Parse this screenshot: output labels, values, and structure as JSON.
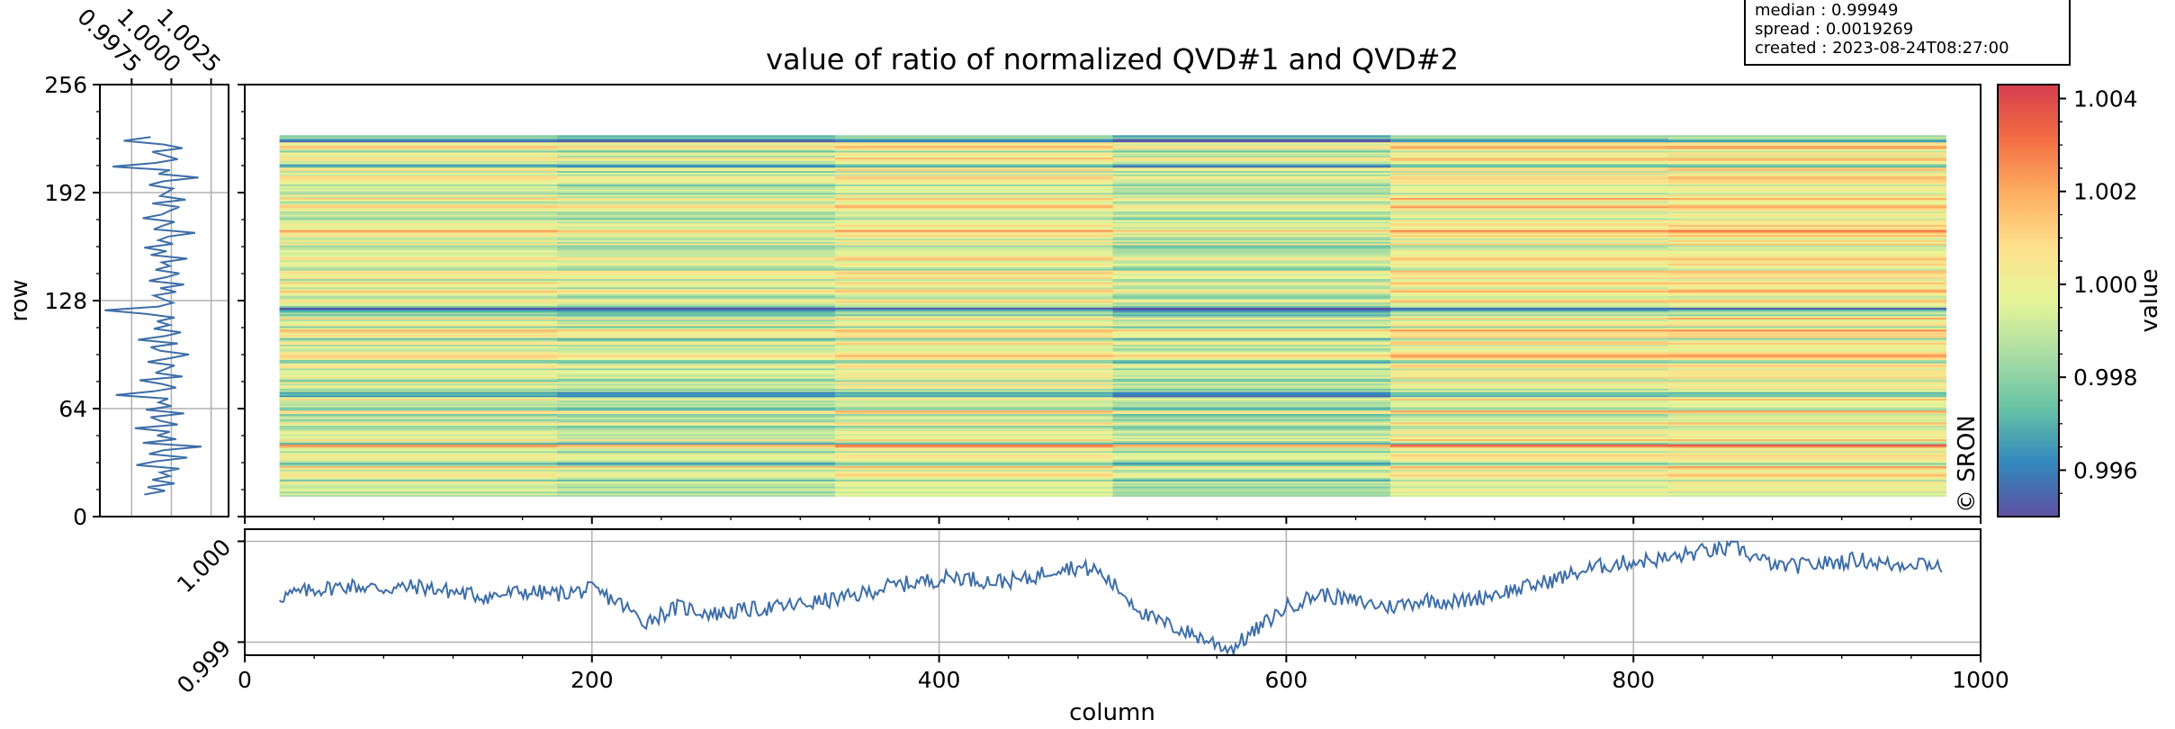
{
  "chart_data": {
    "type": "heatmap",
    "title": "value of ratio of normalized QVD#1 and QVD#2",
    "xlabel": "column",
    "ylabel": "row",
    "colorbar_label": "value",
    "xlim": [
      0,
      1000
    ],
    "ylim": [
      0,
      256
    ],
    "x_ticks": [
      "0",
      "200",
      "400",
      "600",
      "800",
      "1000"
    ],
    "y_ticks": [
      "0",
      "64",
      "128",
      "192",
      "256"
    ],
    "image_extent": {
      "columns": [
        20,
        980
      ],
      "rows": [
        12,
        226
      ]
    },
    "colorbar": {
      "min": 0.995,
      "max": 1.0043,
      "ticks": [
        "0.996",
        "0.998",
        "1.000",
        "1.002",
        "1.004"
      ],
      "colormap": "Spectral_r"
    },
    "colormap_stops": [
      "#5e4fa2",
      "#3288bd",
      "#66c2a5",
      "#abdda4",
      "#e6f598",
      "#fee08b",
      "#fdae61",
      "#f46d43",
      "#d53e4f"
    ],
    "info_box": [
      "median : 0.99949",
      "spread : 0.0019269",
      "created : 2023-08-24T08:27:00"
    ],
    "watermark": "© SRON",
    "side_panel": {
      "xlim": [
        0.9955,
        1.0036
      ],
      "x_ticks": [
        "0.9975",
        "1.0000",
        "1.0025"
      ],
      "description": "row-wise median of ratio",
      "values": [
        0.9983,
        0.9996,
        0.9985,
        1.0002,
        0.9988,
        0.9999,
        0.9993,
        1.0005,
        0.9978,
        0.999,
        1.001,
        0.9986,
        0.9995,
        1.0019,
        0.9982,
        1.0003,
        0.9991,
        0.9999,
        0.9977,
        1.0004,
        0.9993,
        0.9987,
        1.0008,
        0.9984,
        1.0,
        0.9992,
        0.9998,
        0.9965,
        0.9989,
        1.0003,
        0.9994,
        0.998,
        1.0007,
        0.999,
        0.9996,
        1.0002,
        0.9985,
        0.9999,
        1.0011,
        0.9993,
        0.9987,
        1.0004,
        0.9979,
        0.9996,
        1.0006,
        0.9989,
        0.9999,
        0.9991,
        1.0002,
        0.9984,
        0.9958,
        0.9992,
        1.0001,
        0.9995,
        0.9989,
        1.0003,
        0.9993,
        1.0008,
        0.9986,
        0.9997,
        1.0005,
        0.999,
        0.9999,
        0.9994,
        1.001,
        0.9987,
        0.9997,
        0.9983,
        1.0001,
        0.9992,
        0.9998,
        1.0015,
        0.9989,
        0.9995,
        1.0002,
        0.9982,
        0.9994,
        0.9999,
        1.0005,
        0.9988,
        1.0009,
        0.9993,
        0.9997,
        1.0001,
        0.9986,
        0.9995,
        1.0017,
        0.9992,
        0.9999,
        0.9963,
        0.999,
        1.0004,
        0.9996,
        0.9988,
        1.0007,
        0.9995,
        0.997,
        0.9987
      ]
    },
    "bottom_panel": {
      "ylim": [
        0.99887,
        1.00012
      ],
      "y_ticks": [
        "0.999",
        "1.000"
      ],
      "description": "column-wise median of ratio",
      "points": [
        [
          20,
          0.99945
        ],
        [
          40,
          0.99952
        ],
        [
          60,
          0.99956
        ],
        [
          80,
          0.99953
        ],
        [
          100,
          0.99955
        ],
        [
          120,
          0.9995
        ],
        [
          140,
          0.99945
        ],
        [
          160,
          0.9995
        ],
        [
          180,
          0.99948
        ],
        [
          200,
          0.99952
        ],
        [
          215,
          0.9994
        ],
        [
          230,
          0.9992
        ],
        [
          250,
          0.99935
        ],
        [
          270,
          0.99928
        ],
        [
          290,
          0.99932
        ],
        [
          310,
          0.99935
        ],
        [
          330,
          0.9994
        ],
        [
          350,
          0.99945
        ],
        [
          370,
          0.99955
        ],
        [
          390,
          0.9996
        ],
        [
          410,
          0.99965
        ],
        [
          430,
          0.9996
        ],
        [
          450,
          0.99962
        ],
        [
          470,
          0.99975
        ],
        [
          490,
          0.99972
        ],
        [
          505,
          0.9995
        ],
        [
          520,
          0.99925
        ],
        [
          535,
          0.99915
        ],
        [
          550,
          0.99905
        ],
        [
          568,
          0.99893
        ],
        [
          585,
          0.99915
        ],
        [
          600,
          0.99935
        ],
        [
          620,
          0.99948
        ],
        [
          640,
          0.9994
        ],
        [
          660,
          0.99935
        ],
        [
          680,
          0.99942
        ],
        [
          700,
          0.9994
        ],
        [
          720,
          0.99948
        ],
        [
          740,
          0.99955
        ],
        [
          760,
          0.99965
        ],
        [
          780,
          0.99975
        ],
        [
          800,
          0.9998
        ],
        [
          820,
          0.99983
        ],
        [
          840,
          0.9999
        ],
        [
          860,
          0.99993
        ],
        [
          875,
          0.9998
        ],
        [
          890,
          0.99975
        ],
        [
          910,
          0.99978
        ],
        [
          930,
          0.99982
        ],
        [
          950,
          0.99976
        ],
        [
          965,
          0.9998
        ],
        [
          978,
          0.99975
        ]
      ]
    }
  }
}
